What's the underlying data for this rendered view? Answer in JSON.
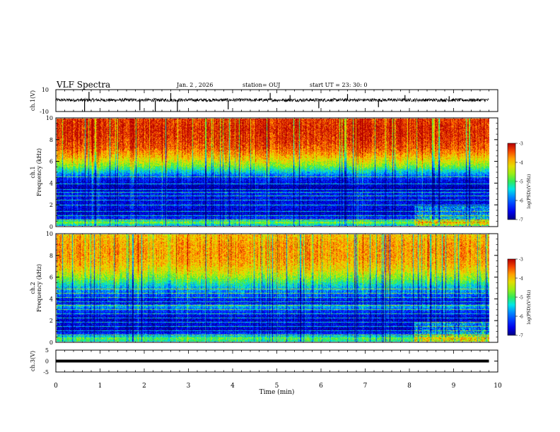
{
  "header": {
    "title": "VLF Spectra",
    "date": "Jan. 2 , 2026",
    "station": "station= OUJ",
    "start_ut": "start UT = 23: 30: 0"
  },
  "chart_data": [
    {
      "type": "line",
      "panel": "ch1-waveform",
      "ylabel": "ch.1(V)",
      "ylim": [
        -10,
        10
      ],
      "yticks": [
        "10",
        "-10"
      ],
      "baseline": 0.5,
      "noise_amplitude": 1.5,
      "spikes": [
        [
          0.65,
          -10
        ],
        [
          0.75,
          8
        ],
        [
          1.9,
          -9
        ],
        [
          2.25,
          -10
        ],
        [
          2.6,
          7
        ],
        [
          2.75,
          -10
        ],
        [
          3.9,
          -8
        ],
        [
          4.85,
          7
        ],
        [
          5.3,
          5
        ],
        [
          5.95,
          -7
        ],
        [
          6.6,
          6
        ],
        [
          7.3,
          -6
        ],
        [
          7.9,
          5
        ],
        [
          8.9,
          4
        ]
      ],
      "x": {
        "min": 0,
        "max": 9.8
      }
    },
    {
      "type": "heatmap",
      "panel": "ch1-spectrogram",
      "ylabel": "ch.1 Frequency (kHz)",
      "ylim": [
        0,
        10
      ],
      "yticks": [
        "0",
        "2",
        "4",
        "6",
        "8",
        "10"
      ],
      "x_extent": [
        0,
        9.8
      ],
      "colorbar": {
        "label": "log(PSD)(V²/Hz)",
        "ticks": [
          "-3",
          "-4",
          "-5",
          "-6",
          "-7"
        ],
        "range": [
          -7,
          -3
        ]
      },
      "profile": [
        [
          0,
          -5.6
        ],
        [
          0.3,
          -4.6
        ],
        [
          0.6,
          -6.2
        ],
        [
          1.2,
          -6.8
        ],
        [
          1.8,
          -6.5
        ],
        [
          2.4,
          -6.6
        ],
        [
          3.0,
          -6.4
        ],
        [
          3.5,
          -6.9
        ],
        [
          4.0,
          -6.6
        ],
        [
          4.5,
          -6.3
        ],
        [
          5.0,
          -5.5
        ],
        [
          5.6,
          -4.7
        ],
        [
          6.4,
          -4.0
        ],
        [
          7.2,
          -3.5
        ],
        [
          8.0,
          -3.3
        ],
        [
          9.0,
          -3.2
        ],
        [
          10.0,
          -3.3
        ]
      ],
      "change_time": 8.1,
      "lines": [
        0.5,
        0.9,
        1.3,
        1.9,
        2.4,
        2.8,
        3.1,
        3.4,
        3.9,
        4.6
      ]
    },
    {
      "type": "heatmap",
      "panel": "ch2-spectrogram",
      "ylabel": "ch.2 Frequency (kHz)",
      "ylim": [
        0,
        10
      ],
      "yticks": [
        "0",
        "2",
        "4",
        "6",
        "8",
        "10"
      ],
      "x_extent": [
        0,
        9.8
      ],
      "colorbar": {
        "label": "log(PSD)(V²/Hz)",
        "ticks": [
          "-3",
          "-4",
          "-5",
          "-6",
          "-7"
        ],
        "range": [
          -7,
          -3
        ]
      },
      "profile": [
        [
          0,
          -5.2
        ],
        [
          0.3,
          -4.8
        ],
        [
          0.6,
          -6.0
        ],
        [
          1.0,
          -6.8
        ],
        [
          1.6,
          -6.6
        ],
        [
          2.2,
          -6.7
        ],
        [
          2.9,
          -6.2
        ],
        [
          3.3,
          -5.6
        ],
        [
          3.6,
          -6.6
        ],
        [
          4.2,
          -6.2
        ],
        [
          5.0,
          -5.6
        ],
        [
          5.8,
          -4.8
        ],
        [
          6.6,
          -4.2
        ],
        [
          7.4,
          -3.9
        ],
        [
          8.2,
          -3.8
        ],
        [
          9.0,
          -3.8
        ],
        [
          10.0,
          -4.0
        ]
      ],
      "change_time": 8.1,
      "lines": [
        0.6,
        1.0,
        1.4,
        1.8,
        2.2,
        2.6,
        3.0,
        3.4,
        3.7,
        4.1,
        4.5,
        4.9
      ]
    },
    {
      "type": "line",
      "panel": "ch3-waveform",
      "ylabel": "ch.3(V)",
      "ylim": [
        -5,
        5
      ],
      "yticks": [
        "5",
        "0",
        "-5"
      ],
      "level": 0,
      "x": {
        "min": 0,
        "max": 9.8
      }
    }
  ],
  "xaxis": {
    "label": "Time (min)",
    "range": [
      0,
      10
    ],
    "ticks": [
      "0",
      "1",
      "2",
      "3",
      "4",
      "5",
      "6",
      "7",
      "8",
      "9",
      "10"
    ]
  }
}
